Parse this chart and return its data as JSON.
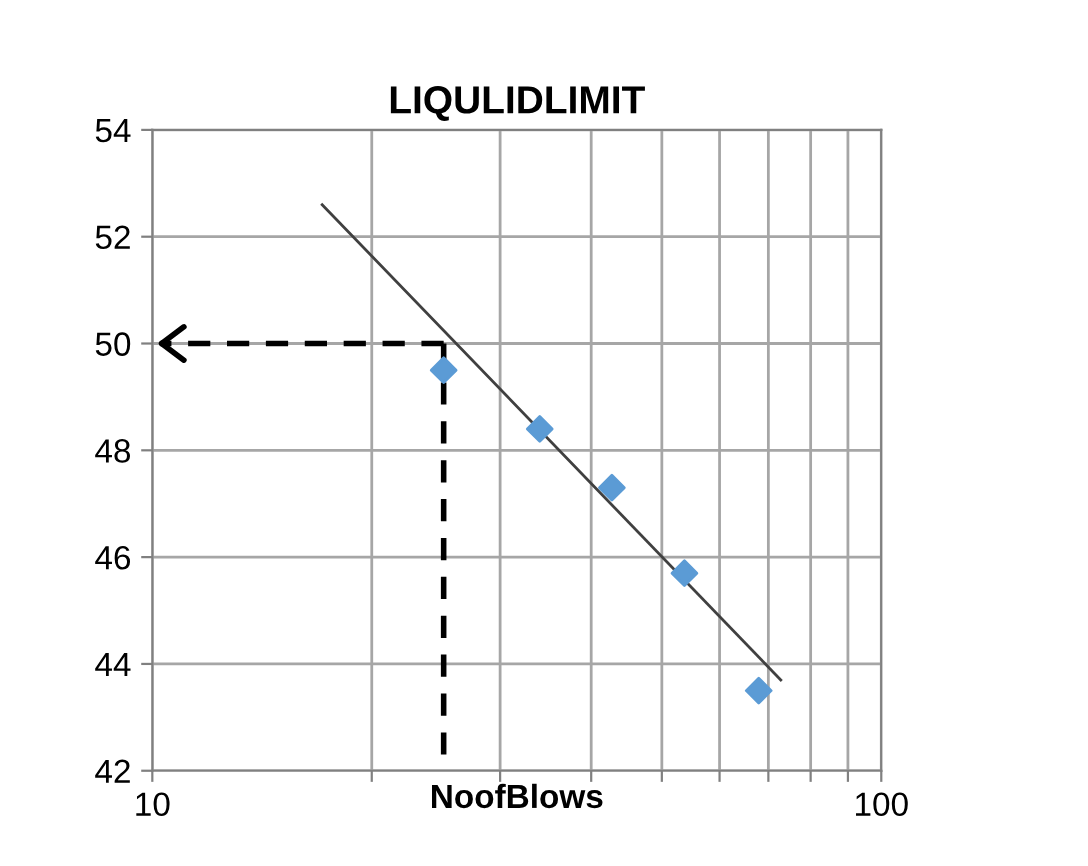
{
  "chart_data": {
    "type": "scatter",
    "title": "LIQULIDLIMIT",
    "xlabel": "NoofBlows",
    "log": "x",
    "grid": true,
    "marker": "diamond",
    "xlim": [
      10,
      100
    ],
    "ylim": [
      42,
      54
    ],
    "xticks": [
      10,
      {
        "value": 20,
        "label": null
      },
      {
        "value": 30,
        "label": null
      },
      {
        "value": 40,
        "label": null
      },
      {
        "value": 50,
        "label": null
      },
      {
        "value": 60,
        "label": null
      },
      {
        "value": 70,
        "label": null
      },
      {
        "value": 80,
        "label": null
      },
      {
        "value": 90,
        "label": null
      },
      100
    ],
    "yticks": [
      42,
      44,
      46,
      48,
      50,
      52,
      54
    ],
    "series": [
      {
        "color": "#5b9bd5",
        "x": [
          25.1,
          34.0,
          42.7,
          53.7,
          67.9
        ],
        "values": [
          49.5,
          48.4,
          47.3,
          45.7,
          43.5
        ]
      },
      {
        "type": "line",
        "color": "#404040",
        "marker": "none",
        "line_style": "solid",
        "x": [
          17.1,
          72.8
        ],
        "values": [
          52.6,
          43.7
        ]
      },
      {
        "type": "line",
        "color": "#000000",
        "marker": "none",
        "line_style": "dashed",
        "x": [
          25.1,
          10.3
        ],
        "values": [
          50,
          50
        ]
      },
      {
        "type": "line",
        "color": "#000000",
        "marker": "none",
        "line_style": "dashed",
        "x": [
          25.1,
          25.1
        ],
        "values": [
          50,
          42
        ]
      }
    ]
  }
}
